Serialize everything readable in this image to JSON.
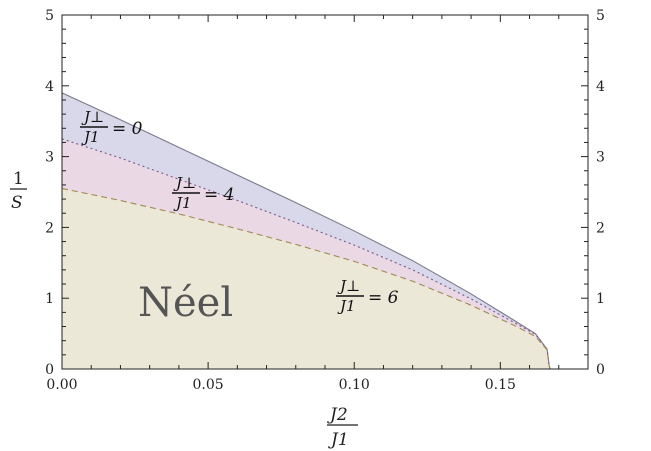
{
  "chart_data": {
    "type": "area",
    "title": "",
    "xlabel": {
      "numerator": "J2",
      "denominator": "J1"
    },
    "ylabel": {
      "numerator": "1",
      "denominator": "S"
    },
    "xlim": [
      0.0,
      0.18
    ],
    "ylim": [
      0,
      5
    ],
    "x_ticks": [
      "0.00",
      "0.05",
      "0.10",
      "0.15"
    ],
    "y_ticks": [
      "0",
      "1",
      "2",
      "3",
      "4",
      "5"
    ],
    "grid": false,
    "region_label": "Néel",
    "series": [
      {
        "name": "J⊥/J1 = 0",
        "label_parts": {
          "num": "J⊥",
          "den": "J1",
          "value": "= 0"
        },
        "color": "#7a7a8c",
        "fill": "#d8d8ea",
        "dash": "solid",
        "x": [
          0.0,
          0.02,
          0.04,
          0.06,
          0.08,
          0.1,
          0.12,
          0.14,
          0.155,
          0.162,
          0.166,
          0.1667,
          0.167
        ],
        "y": [
          3.9,
          3.52,
          3.13,
          2.74,
          2.35,
          1.95,
          1.53,
          1.06,
          0.68,
          0.5,
          0.28,
          0.05,
          0.0
        ]
      },
      {
        "name": "J⊥/J1 = 4",
        "label_parts": {
          "num": "J⊥",
          "den": "J1",
          "value": "= 4"
        },
        "color": "#7a5a8a",
        "fill": "#ead8e4",
        "dash": "dotted",
        "x": [
          0.0,
          0.02,
          0.04,
          0.06,
          0.08,
          0.1,
          0.12,
          0.14,
          0.155,
          0.162,
          0.166,
          0.1667,
          0.167
        ],
        "y": [
          3.25,
          2.98,
          2.68,
          2.38,
          2.07,
          1.75,
          1.4,
          0.99,
          0.65,
          0.49,
          0.28,
          0.05,
          0.0
        ]
      },
      {
        "name": "J⊥/J1 = 6",
        "label_parts": {
          "num": "J⊥",
          "den": "J1",
          "value": "= 6"
        },
        "color": "#a08a50",
        "fill": "#ece8d8",
        "dash": "dashed",
        "x": [
          0.0,
          0.02,
          0.04,
          0.06,
          0.08,
          0.1,
          0.12,
          0.14,
          0.155,
          0.162,
          0.166,
          0.1667,
          0.167
        ],
        "y": [
          2.55,
          2.38,
          2.19,
          1.98,
          1.76,
          1.52,
          1.24,
          0.9,
          0.61,
          0.46,
          0.27,
          0.05,
          0.0
        ]
      }
    ]
  }
}
